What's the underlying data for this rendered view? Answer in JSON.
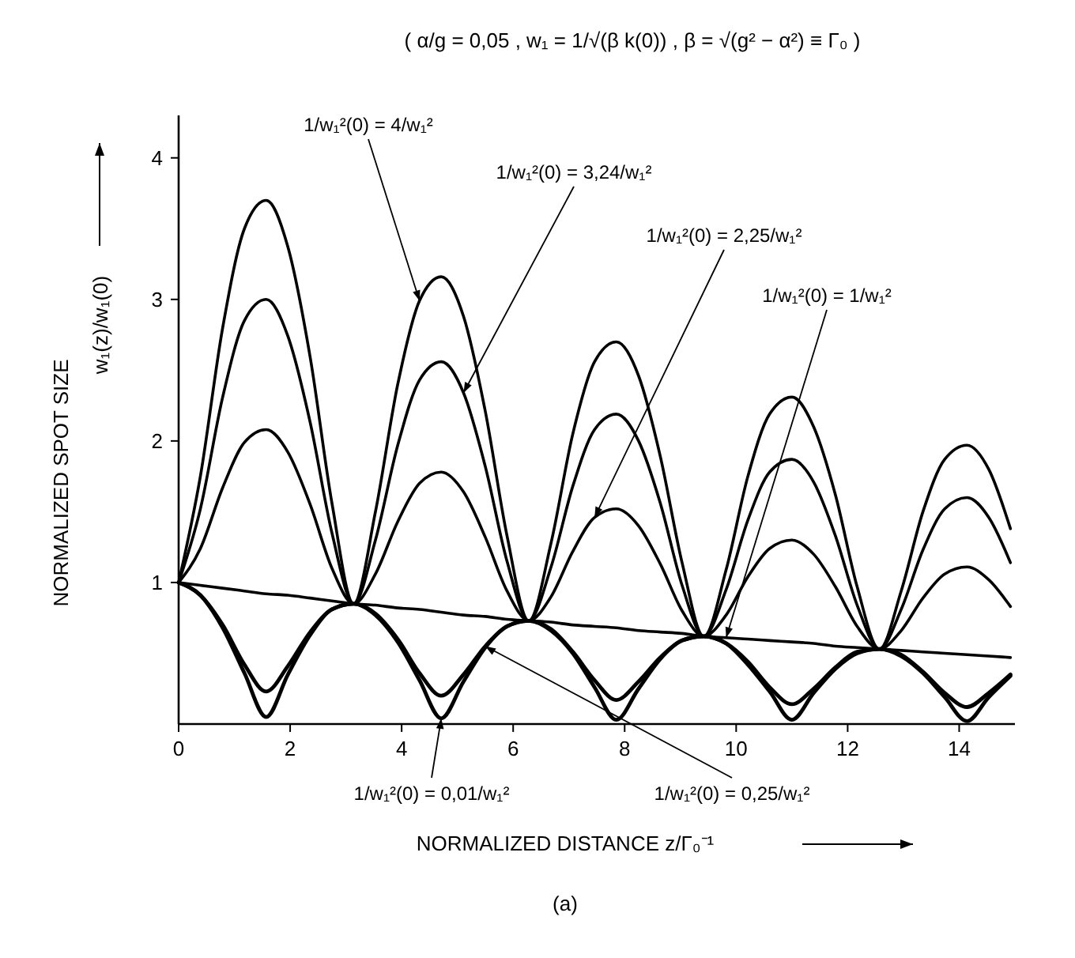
{
  "chart_data": {
    "type": "line",
    "title": "( α/g = 0,05 ,   w₁ = 1/√(β k(0)) ,   β = √(g² − α²) ≡ Γ₀ )",
    "xlabel": "NORMALIZED DISTANCE   z/Γ₀⁻¹",
    "ylabel": "NORMALIZED SPOT SIZE",
    "annotations": [
      "w₁(z)/w₁(0)",
      "(a)"
    ],
    "x": [
      0,
      0.39,
      0.79,
      1.18,
      1.57,
      1.96,
      2.36,
      2.75,
      3.14,
      3.53,
      3.93,
      4.32,
      4.71,
      5.11,
      5.5,
      5.89,
      6.28,
      6.68,
      7.07,
      7.46,
      7.85,
      8.25,
      8.64,
      9.03,
      9.42,
      9.82,
      10.21,
      10.6,
      11.0,
      11.39,
      11.78,
      12.17,
      12.57,
      12.96,
      13.35,
      13.74,
      14.14,
      14.53,
      14.92
    ],
    "series": [
      {
        "name": "1/w₁²(0) = 4/w₁²",
        "color": "#000000",
        "values": [
          1.0,
          1.75,
          2.8,
          3.5,
          3.7,
          3.37,
          2.59,
          1.56,
          0.85,
          1.5,
          2.4,
          2.99,
          3.16,
          2.88,
          2.21,
          1.33,
          0.73,
          1.28,
          2.05,
          2.56,
          2.7,
          2.46,
          1.89,
          1.14,
          0.62,
          1.09,
          1.75,
          2.19,
          2.31,
          2.1,
          1.62,
          0.97,
          0.53,
          0.94,
          1.5,
          1.87,
          1.97,
          1.8,
          1.38
        ]
      },
      {
        "name": "1/w₁²(0) = 3,24/w₁²",
        "color": "#000000",
        "values": [
          1.0,
          1.52,
          2.31,
          2.85,
          3.0,
          2.74,
          2.13,
          1.35,
          0.85,
          1.3,
          1.97,
          2.43,
          2.56,
          2.34,
          1.82,
          1.15,
          0.73,
          1.11,
          1.68,
          2.08,
          2.19,
          2.0,
          1.56,
          0.98,
          0.62,
          0.95,
          1.44,
          1.78,
          1.87,
          1.71,
          1.33,
          0.84,
          0.53,
          0.81,
          1.23,
          1.52,
          1.6,
          1.46,
          1.14
        ]
      },
      {
        "name": "1/w₁²(0) = 2,25/w₁²",
        "color": "#000000",
        "values": [
          1.0,
          1.24,
          1.67,
          1.99,
          2.08,
          1.92,
          1.55,
          1.1,
          0.85,
          1.06,
          1.43,
          1.7,
          1.78,
          1.64,
          1.32,
          0.94,
          0.73,
          0.9,
          1.22,
          1.46,
          1.52,
          1.4,
          1.13,
          0.8,
          0.62,
          0.77,
          1.04,
          1.24,
          1.3,
          1.2,
          0.97,
          0.69,
          0.53,
          0.66,
          0.89,
          1.06,
          1.11,
          1.02,
          0.83
        ]
      },
      {
        "name": "1/w₁²(0) = 1/w₁²",
        "color": "#000000",
        "values": [
          1.0,
          0.98,
          0.96,
          0.94,
          0.92,
          0.91,
          0.89,
          0.87,
          0.85,
          0.84,
          0.82,
          0.81,
          0.79,
          0.77,
          0.76,
          0.74,
          0.73,
          0.72,
          0.7,
          0.69,
          0.68,
          0.66,
          0.65,
          0.64,
          0.62,
          0.61,
          0.6,
          0.59,
          0.58,
          0.57,
          0.55,
          0.54,
          0.53,
          0.52,
          0.51,
          0.5,
          0.49,
          0.48,
          0.47
        ]
      },
      {
        "name": "1/w₁²(0) = 0,01/w₁²",
        "color": "#000000",
        "values": [
          1.0,
          0.91,
          0.68,
          0.36,
          0.05,
          0.35,
          0.63,
          0.81,
          0.85,
          0.77,
          0.58,
          0.31,
          0.04,
          0.3,
          0.54,
          0.69,
          0.73,
          0.66,
          0.5,
          0.26,
          0.03,
          0.25,
          0.46,
          0.59,
          0.62,
          0.57,
          0.42,
          0.23,
          0.03,
          0.22,
          0.39,
          0.5,
          0.53,
          0.48,
          0.36,
          0.19,
          0.02,
          0.19,
          0.34
        ]
      },
      {
        "name": "1/w₁²(0) = 0,25/w₁²",
        "color": "#000000",
        "values": [
          1.0,
          0.91,
          0.7,
          0.42,
          0.23,
          0.41,
          0.65,
          0.81,
          0.85,
          0.78,
          0.6,
          0.36,
          0.2,
          0.35,
          0.55,
          0.69,
          0.73,
          0.67,
          0.51,
          0.31,
          0.17,
          0.3,
          0.47,
          0.59,
          0.62,
          0.57,
          0.44,
          0.26,
          0.14,
          0.25,
          0.4,
          0.51,
          0.53,
          0.49,
          0.37,
          0.22,
          0.12,
          0.22,
          0.35
        ]
      }
    ],
    "xlim": [
      0,
      15
    ],
    "ylim": [
      0,
      4.3
    ],
    "xticks": [
      0,
      2,
      4,
      6,
      8,
      10,
      12,
      14
    ],
    "yticks": [
      1,
      2,
      3,
      4
    ]
  }
}
